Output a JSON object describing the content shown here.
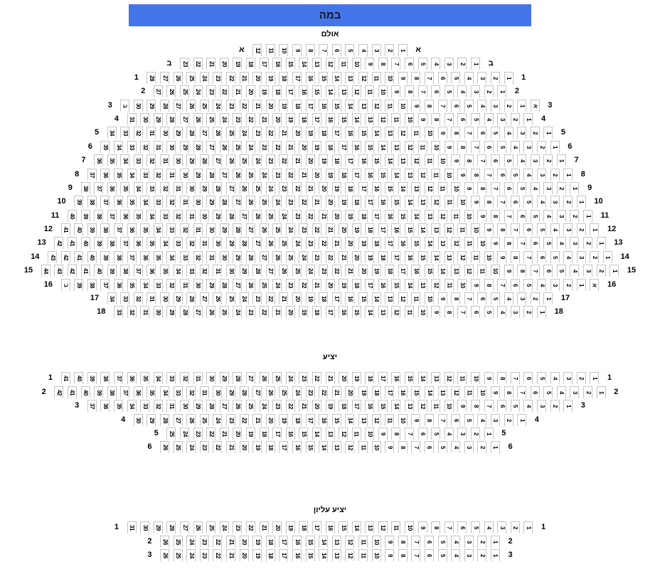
{
  "stage": {
    "label": "במה"
  },
  "colors": {
    "stage_bg": "#4375e9",
    "stage_text": "#141420",
    "seat_border": "#c4c4c4",
    "seat_bg": "#ffffff"
  },
  "sections": [
    {
      "key": "hall",
      "title": "אולם",
      "rows": [
        {
          "label": "א",
          "start": 12,
          "end": 1
        },
        {
          "label": "ב",
          "start": 23,
          "end": 1
        },
        {
          "label": "1",
          "start": 28,
          "end": 1
        },
        {
          "label": "2",
          "start": 27,
          "end": 1
        },
        {
          "label": "3",
          "pre": "ב",
          "start": 30,
          "end": 1,
          "post": "א"
        },
        {
          "label": "4",
          "start": 31,
          "end": 1
        },
        {
          "label": "5",
          "start": 34,
          "end": 1
        },
        {
          "label": "6",
          "start": 35,
          "end": 1
        },
        {
          "label": "7",
          "start": 36,
          "end": 1
        },
        {
          "label": "8",
          "start": 37,
          "end": 1
        },
        {
          "label": "9",
          "start": 38,
          "end": 1
        },
        {
          "label": "10",
          "start": 39,
          "end": 1
        },
        {
          "label": "11",
          "start": 40,
          "end": 1
        },
        {
          "label": "12",
          "start": 41,
          "end": 1
        },
        {
          "label": "13",
          "start": 42,
          "end": 1
        },
        {
          "label": "14",
          "start": 43,
          "end": 1
        },
        {
          "label": "15",
          "start": 44,
          "end": 1
        },
        {
          "label": "16",
          "pre": "ב",
          "start": 39,
          "end": 1,
          "post": "א"
        },
        {
          "label": "17",
          "start": 34,
          "end": 1
        },
        {
          "label": "18",
          "start": 33,
          "end": 1
        }
      ]
    },
    {
      "key": "balcony",
      "title": "יציע",
      "rows": [
        {
          "label": "1",
          "start": 41,
          "end": 1
        },
        {
          "label": "2",
          "start": 42,
          "end": 1
        },
        {
          "label": "3",
          "start": 37,
          "end": 1
        },
        {
          "label": "4",
          "start": 30,
          "end": 1
        },
        {
          "label": "5",
          "start": 25,
          "end": 1
        },
        {
          "label": "6",
          "start": 26,
          "end": 1
        }
      ]
    },
    {
      "key": "upper-balcony",
      "title": "יציע עליון",
      "rows": [
        {
          "label": "1",
          "start": 31,
          "end": 1
        },
        {
          "label": "2",
          "start": 26,
          "end": 1
        },
        {
          "label": "3",
          "start": 26,
          "end": 1
        }
      ]
    }
  ]
}
